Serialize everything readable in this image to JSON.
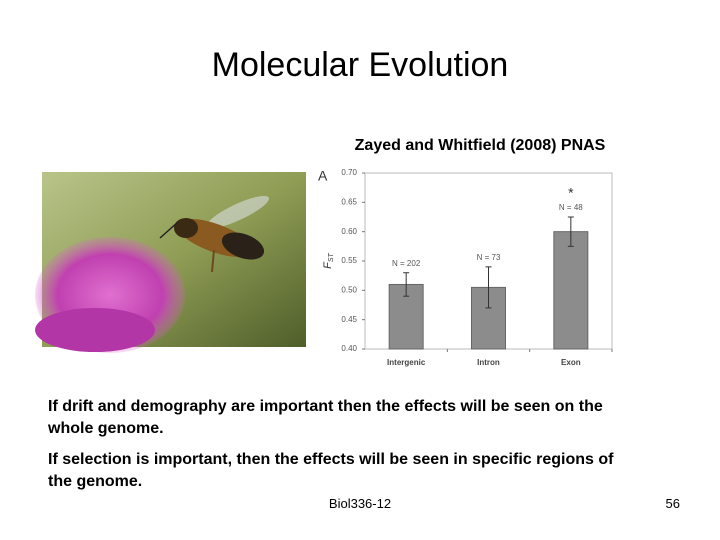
{
  "slide": {
    "title": "Molecular Evolution",
    "citation": "Zayed and Whitfield (2008) PNAS",
    "bullets": [
      "If drift and demography are important then the effects will be seen on the whole genome.",
      "If selection is important, then the effects will be seen in specific regions of the genome."
    ],
    "footer": "Biol336-12",
    "page_number": "56"
  },
  "chart_data": {
    "type": "bar",
    "panel_label": "A",
    "ylabel": "F",
    "ylabel_subscript": "ST",
    "categories": [
      "Intergenic",
      "Intron",
      "Exon"
    ],
    "values": [
      0.51,
      0.505,
      0.6
    ],
    "errors": [
      0.02,
      0.035,
      0.025
    ],
    "annotations": [
      "N = 202",
      "N = 73",
      "N = 48"
    ],
    "significance_marks": [
      null,
      null,
      "*"
    ],
    "color": "#8c8c8c",
    "ylim": [
      0.4,
      0.7
    ],
    "yticks": [
      {
        "value": 0.4,
        "label": "0.40"
      },
      0.45,
      {
        "value": 0.5,
        "label": "0.50"
      },
      0.55,
      {
        "value": 0.6,
        "label": "0.60"
      },
      0.65,
      {
        "value": 0.7,
        "label": "0.70"
      }
    ],
    "grid": false
  }
}
